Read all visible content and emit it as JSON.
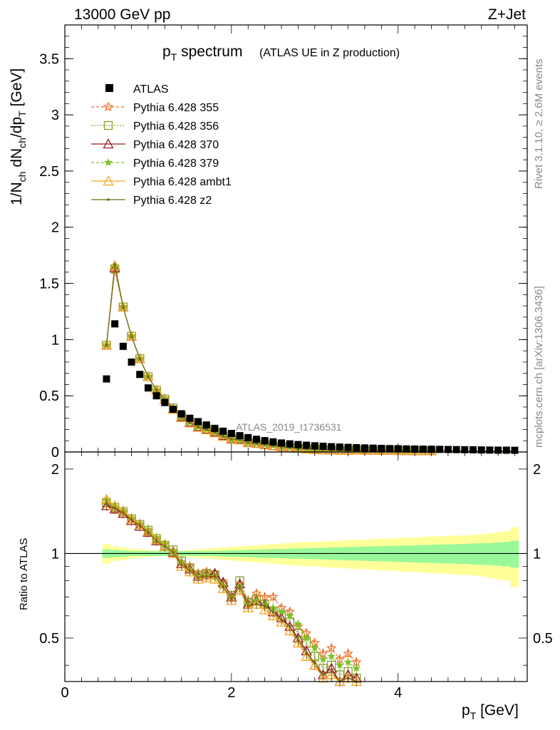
{
  "header": {
    "energy_label": "13000 GeV pp",
    "process_label": "Z+Jet",
    "title_main": "p",
    "title_sub": "T",
    "title_rest": " spectrum",
    "title_note": "(ATLAS UE in Z production)",
    "side_rivet": "Rivet 3.1.10, ≥ 2.6M events",
    "side_mcplots": "mcplots.cern.ch [arXiv:1306.3436]",
    "watermark": "ATLAS_2019_I1736531"
  },
  "axes": {
    "y_main_label": "1/N_ch dN_ch/dp_T [GeV]",
    "y_ratio_label": "Ratio to ATLAS",
    "x_label": "p_T [GeV]",
    "y_main_ticks": [
      "0",
      "0.5",
      "1",
      "1.5",
      "2",
      "2.5",
      "3",
      "3.5"
    ],
    "y_ratio_ticks_left": [
      "0.5",
      "1",
      "2"
    ],
    "y_ratio_ticks_right": [
      "0.5",
      "1",
      "2"
    ],
    "x_ticks": [
      "0",
      "2",
      "4"
    ]
  },
  "chart_data": {
    "type": "scatter",
    "x": [
      0.5,
      0.6,
      0.7,
      0.8,
      0.9,
      1.0,
      1.1,
      1.2,
      1.3,
      1.4,
      1.5,
      1.6,
      1.7,
      1.8,
      1.9,
      2.0,
      2.1,
      2.2,
      2.3,
      2.4,
      2.5,
      2.6,
      2.7,
      2.8,
      2.9,
      3.0,
      3.1,
      3.2,
      3.3,
      3.4,
      3.5,
      3.6,
      3.7,
      3.8,
      3.9,
      4.0,
      4.1,
      4.2,
      4.3,
      4.4,
      4.5,
      4.6,
      4.7,
      4.8,
      4.9,
      5.0,
      5.1,
      5.2,
      5.3,
      5.4
    ],
    "xlim": [
      0,
      5.55
    ],
    "main_ylim": [
      0,
      3.8
    ],
    "ratio_ylim": [
      0.35,
      2.3
    ],
    "ratio_scale": "log",
    "reference": {
      "name": "ATLAS",
      "values": [
        0.65,
        1.14,
        0.94,
        0.8,
        0.69,
        0.57,
        0.5,
        0.44,
        0.38,
        0.34,
        0.3,
        0.27,
        0.24,
        0.21,
        0.185,
        0.165,
        0.145,
        0.128,
        0.113,
        0.101,
        0.09,
        0.08,
        0.072,
        0.066,
        0.06,
        0.055,
        0.051,
        0.047,
        0.044,
        0.041,
        0.038,
        0.036,
        0.034,
        0.032,
        0.03,
        0.029,
        0.027,
        0.026,
        0.025,
        0.024,
        0.023,
        0.022,
        0.021,
        0.02,
        0.019,
        0.018,
        0.017,
        0.016,
        0.016,
        0.015
      ],
      "ratio_band_inner": [
        0.035,
        0.03,
        0.025,
        0.02,
        0.02,
        0.02,
        0.02,
        0.02,
        0.02,
        0.02,
        0.02,
        0.02,
        0.02,
        0.022,
        0.024,
        0.026,
        0.028,
        0.03,
        0.032,
        0.034,
        0.036,
        0.038,
        0.04,
        0.042,
        0.044,
        0.046,
        0.048,
        0.05,
        0.052,
        0.054,
        0.056,
        0.058,
        0.06,
        0.062,
        0.064,
        0.066,
        0.068,
        0.07,
        0.072,
        0.074,
        0.076,
        0.078,
        0.08,
        0.082,
        0.085,
        0.088,
        0.09,
        0.095,
        0.1,
        0.11
      ],
      "ratio_band_outer": [
        0.08,
        0.06,
        0.05,
        0.04,
        0.035,
        0.03,
        0.025,
        0.02,
        0.02,
        0.025,
        0.03,
        0.035,
        0.04,
        0.045,
        0.05,
        0.055,
        0.06,
        0.065,
        0.07,
        0.075,
        0.08,
        0.085,
        0.09,
        0.095,
        0.1,
        0.1,
        0.105,
        0.11,
        0.11,
        0.115,
        0.12,
        0.12,
        0.125,
        0.13,
        0.13,
        0.135,
        0.14,
        0.14,
        0.145,
        0.15,
        0.15,
        0.155,
        0.16,
        0.16,
        0.165,
        0.17,
        0.18,
        0.19,
        0.2,
        0.24
      ]
    },
    "series": [
      {
        "name": "Pythia 6.428 355",
        "color": "#f26b22",
        "dash": "4,3",
        "marker": "star",
        "ratio": [
          1.5,
          1.44,
          1.4,
          1.32,
          1.26,
          1.2,
          1.12,
          1.08,
          1.02,
          0.93,
          0.9,
          0.85,
          0.86,
          0.85,
          0.78,
          0.7,
          0.78,
          0.68,
          0.72,
          0.7,
          0.7,
          0.64,
          0.62,
          0.55,
          0.52,
          0.48,
          0.44,
          0.46,
          0.42,
          0.44,
          0.41
        ]
      },
      {
        "name": "Pythia 6.428 356",
        "color": "#8aa028",
        "dash": "2,2",
        "marker": "square",
        "ratio": [
          1.52,
          1.46,
          1.41,
          1.33,
          1.27,
          1.21,
          1.13,
          1.07,
          1.03,
          0.94,
          0.89,
          0.84,
          0.85,
          0.84,
          0.78,
          0.71,
          0.8,
          0.67,
          0.69,
          0.66,
          0.62,
          0.6,
          0.57,
          0.52,
          0.48,
          0.43,
          0.39,
          0.4,
          0.37,
          0.38,
          0.36
        ]
      },
      {
        "name": "Pythia 6.428 370",
        "color": "#9b1b22",
        "dash": "",
        "marker": "triangle",
        "ratio": [
          1.48,
          1.44,
          1.39,
          1.31,
          1.25,
          1.19,
          1.11,
          1.06,
          1.01,
          0.92,
          0.88,
          0.83,
          0.84,
          0.85,
          0.79,
          0.7,
          0.78,
          0.66,
          0.68,
          0.66,
          0.62,
          0.59,
          0.55,
          0.5,
          0.45,
          0.4,
          0.37,
          0.39,
          0.35,
          0.37,
          0.36
        ]
      },
      {
        "name": "Pythia 6.428 379",
        "color": "#7cc228",
        "dash": "4,3",
        "marker": "smallstar",
        "ratio": [
          1.55,
          1.47,
          1.42,
          1.34,
          1.28,
          1.22,
          1.14,
          1.08,
          1.02,
          0.93,
          0.88,
          0.83,
          0.84,
          0.83,
          0.77,
          0.7,
          0.76,
          0.66,
          0.68,
          0.66,
          0.64,
          0.62,
          0.6,
          0.56,
          0.5,
          0.46,
          0.42,
          0.43,
          0.4,
          0.41,
          0.39
        ]
      },
      {
        "name": "Pythia 6.428 ambt1",
        "color": "#f5a623",
        "dash": "",
        "marker": "triangle",
        "ratio": [
          1.56,
          1.48,
          1.42,
          1.33,
          1.27,
          1.2,
          1.12,
          1.06,
          1.0,
          0.9,
          0.86,
          0.81,
          0.82,
          0.81,
          0.75,
          0.68,
          0.74,
          0.64,
          0.66,
          0.63,
          0.6,
          0.57,
          0.53,
          0.48,
          0.43,
          0.4,
          0.36,
          0.37,
          0.35,
          0.36,
          0.35
        ]
      },
      {
        "name": "Pythia 6.428 z2",
        "color": "#6b6b1a",
        "dash": "",
        "marker": "dot",
        "ratio": [
          1.5,
          1.45,
          1.4,
          1.32,
          1.26,
          1.19,
          1.11,
          1.06,
          1.01,
          0.91,
          0.87,
          0.82,
          0.83,
          0.83,
          0.76,
          0.69,
          0.76,
          0.65,
          0.66,
          0.65,
          0.62,
          0.58,
          0.55,
          0.49,
          0.44,
          0.41,
          0.37,
          0.38,
          0.35,
          0.36,
          0.35
        ]
      }
    ]
  }
}
